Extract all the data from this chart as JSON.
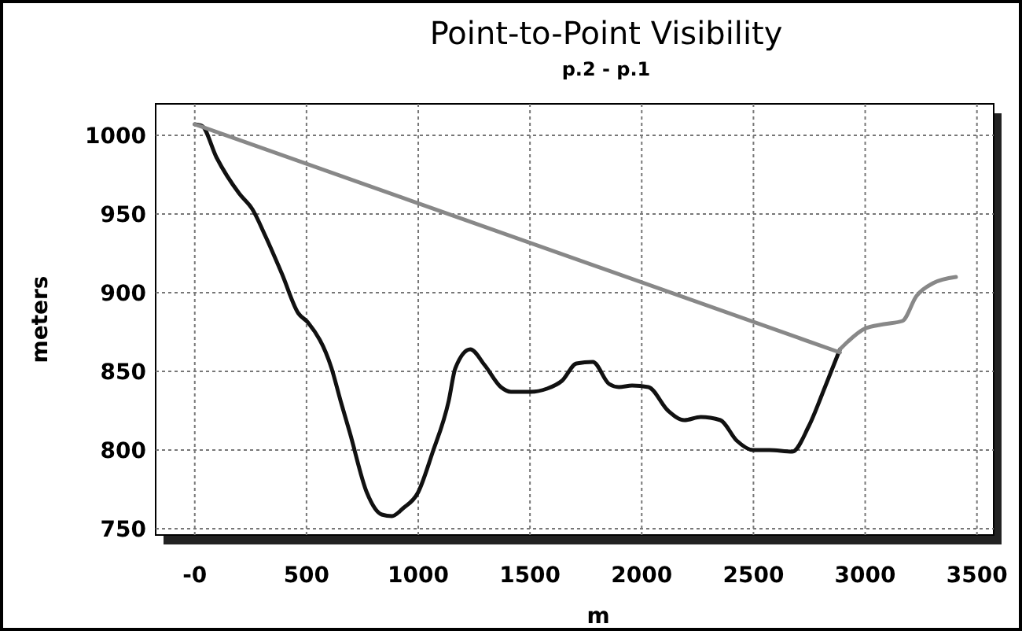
{
  "chart_data": {
    "type": "line",
    "title": "Point-to-Point Visibility",
    "subtitle": "p.2 - p.1",
    "xlabel": "m",
    "ylabel": "meters",
    "xlim": [
      -175,
      3575
    ],
    "ylim": [
      746,
      1020
    ],
    "xticks": [
      {
        "value": 0,
        "label": "-0"
      },
      500,
      1000,
      1500,
      2000,
      2500,
      3000,
      3500
    ],
    "yticks": [
      750,
      800,
      850,
      900,
      950,
      1000
    ],
    "grid": true,
    "marker": "none",
    "line_style": "solid",
    "series": [
      {
        "color": "#111111",
        "x": [
          0,
          32,
          97,
          199,
          258,
          316,
          390,
          463,
          507,
          612,
          653,
          694,
          770,
          837,
          882,
          932,
          999,
          1063,
          1136,
          1166,
          1233,
          1297,
          1370,
          1415,
          1503,
          1576,
          1643,
          1708,
          1781,
          1854,
          1898,
          1957,
          2030,
          2118,
          2191,
          2264,
          2352,
          2425,
          2498,
          2571,
          2674,
          2747,
          2820,
          2887
        ],
        "values": [
          1007,
          1006,
          986,
          963,
          953,
          936,
          912,
          887,
          881,
          852,
          831,
          811,
          773,
          759,
          758,
          763,
          773,
          798,
          831,
          852,
          864,
          854,
          840,
          837,
          837,
          839,
          844,
          855,
          856,
          842,
          840,
          841,
          840,
          825,
          819,
          821,
          819,
          806,
          800,
          800,
          799,
          815,
          840,
          864
        ]
      },
      {
        "color": "#888888",
        "x": [
          2887,
          2923,
          2996,
          3084,
          3166,
          3230,
          3303,
          3406
        ],
        "values": [
          864,
          869,
          877,
          880,
          882,
          898,
          906,
          910
        ]
      },
      {
        "color": "#888888",
        "x": [
          0,
          2887
        ],
        "values": [
          1007,
          862
        ]
      }
    ]
  }
}
